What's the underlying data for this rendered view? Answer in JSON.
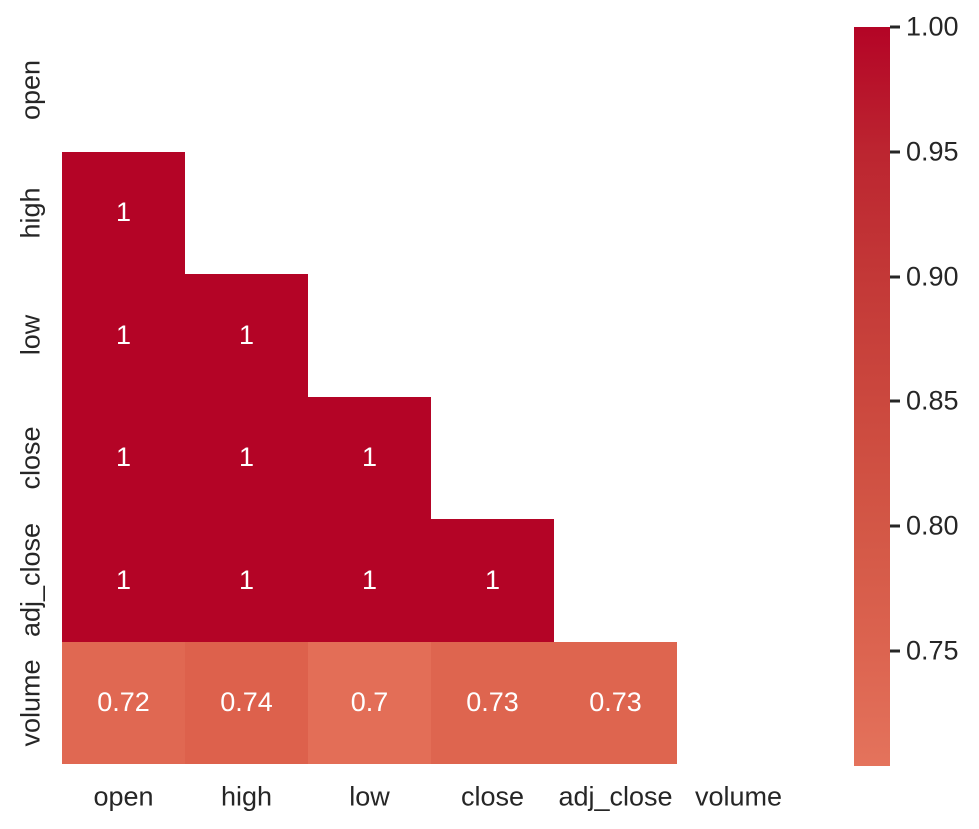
{
  "figure": {
    "background": "#ffffff",
    "tick_label_color": "#262626",
    "annotation_color": "#ffffff"
  },
  "chart_data": {
    "type": "heatmap",
    "title": "",
    "description": "Correlation matrix heatmap, upper triangle and diagonal masked (white)",
    "categories": [
      "open",
      "high",
      "low",
      "close",
      "adj_close",
      "volume"
    ],
    "x_tick_labels": [
      "open",
      "high",
      "low",
      "close",
      "adj_close",
      "volume"
    ],
    "y_tick_labels": [
      "open",
      "high",
      "low",
      "close",
      "adj_close",
      "volume"
    ],
    "rows": [
      {
        "name": "open",
        "cells": []
      },
      {
        "name": "high",
        "cells": [
          {
            "col": "open",
            "label": "1",
            "value": 1
          }
        ]
      },
      {
        "name": "low",
        "cells": [
          {
            "col": "open",
            "label": "1",
            "value": 1
          },
          {
            "col": "high",
            "label": "1",
            "value": 1
          }
        ]
      },
      {
        "name": "close",
        "cells": [
          {
            "col": "open",
            "label": "1",
            "value": 1
          },
          {
            "col": "high",
            "label": "1",
            "value": 1
          },
          {
            "col": "low",
            "label": "1",
            "value": 1
          }
        ]
      },
      {
        "name": "adj_close",
        "cells": [
          {
            "col": "open",
            "label": "1",
            "value": 1
          },
          {
            "col": "high",
            "label": "1",
            "value": 1
          },
          {
            "col": "low",
            "label": "1",
            "value": 1
          },
          {
            "col": "close",
            "label": "1",
            "value": 1
          }
        ]
      },
      {
        "name": "volume",
        "cells": [
          {
            "col": "open",
            "label": "0.72",
            "value": 0.72
          },
          {
            "col": "high",
            "label": "0.74",
            "value": 0.74
          },
          {
            "col": "low",
            "label": "0.7",
            "value": 0.7
          },
          {
            "col": "close",
            "label": "0.73",
            "value": 0.73
          },
          {
            "col": "adj_close",
            "label": "0.73",
            "value": 0.73
          }
        ]
      }
    ],
    "value_colors": {
      "1": "#b40426",
      "0.74": "#dd614c",
      "0.73": "#de654f",
      "0.72": "#e06852",
      "0.7": "#e36e57"
    },
    "colorbar": {
      "vmax": 1.0,
      "vmin": 0.704,
      "ticks": [
        {
          "label": "1.00",
          "value": 1.0
        },
        {
          "label": "0.95",
          "value": 0.95
        },
        {
          "label": "0.90",
          "value": 0.9
        },
        {
          "label": "0.85",
          "value": 0.85
        },
        {
          "label": "0.80",
          "value": 0.8
        },
        {
          "label": "0.75",
          "value": 0.75
        }
      ],
      "gradient": [
        {
          "value": 1.0,
          "color": "#b40426"
        },
        {
          "value": 0.95,
          "color": "#bc2530"
        },
        {
          "value": 0.9,
          "color": "#c33837"
        },
        {
          "value": 0.85,
          "color": "#cb483e"
        },
        {
          "value": 0.8,
          "color": "#d35746"
        },
        {
          "value": 0.75,
          "color": "#dc6450"
        },
        {
          "value": 0.704,
          "color": "#e4735c"
        }
      ]
    },
    "legend": null,
    "grid": false
  }
}
